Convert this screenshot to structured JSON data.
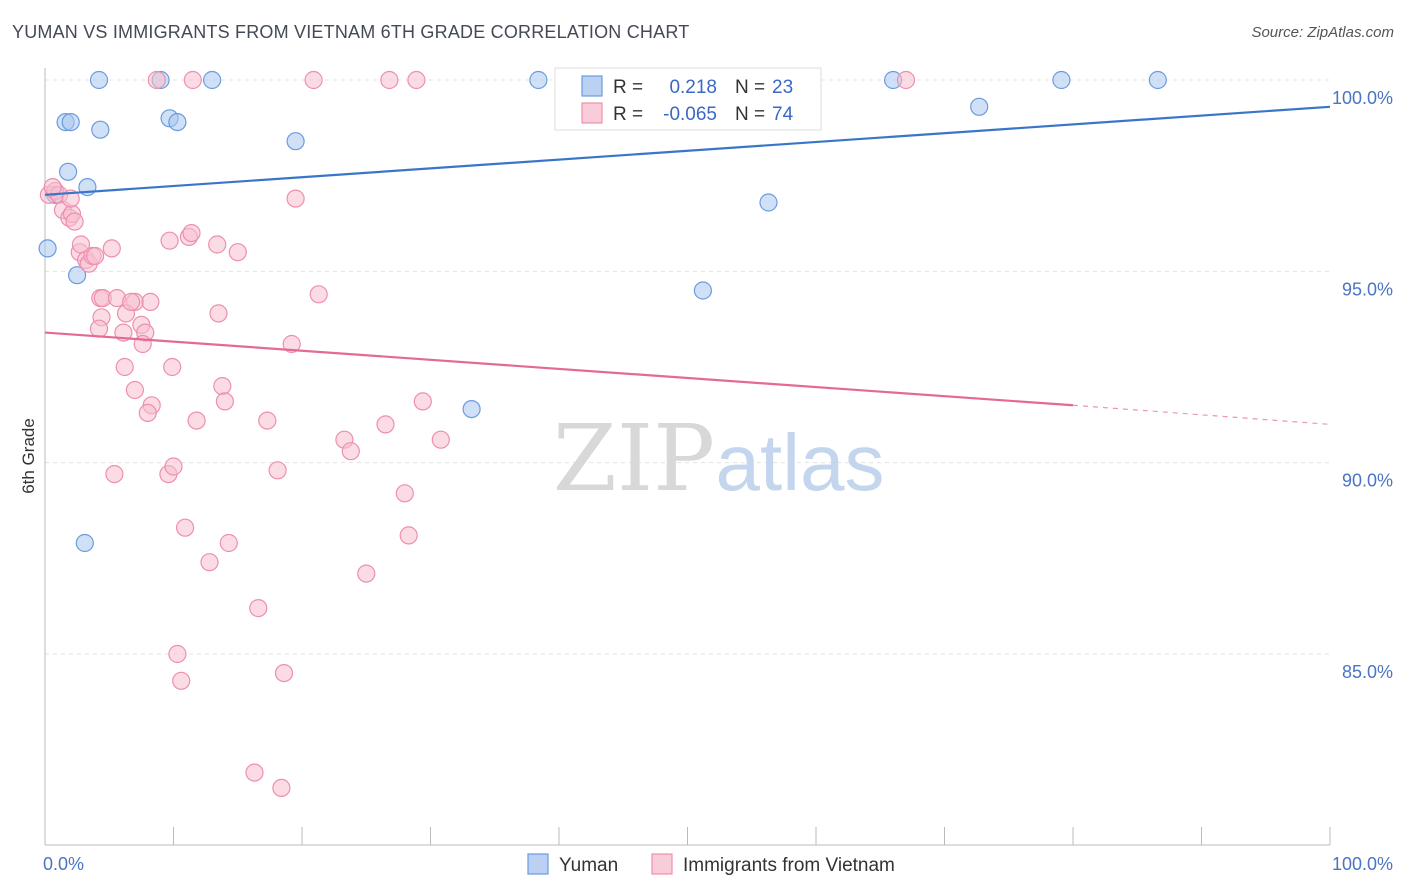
{
  "header": {
    "title": "YUMAN VS IMMIGRANTS FROM VIETNAM 6TH GRADE CORRELATION CHART",
    "source": "Source: ZipAtlas.com"
  },
  "watermark": {
    "zip": "ZIP",
    "atlas": "atlas"
  },
  "chart_data": {
    "type": "scatter",
    "title": "YUMAN VS IMMIGRANTS FROM VIETNAM 6TH GRADE CORRELATION CHART",
    "xlabel": "",
    "ylabel": "6th Grade",
    "xlim": [
      0,
      100
    ],
    "ylim": [
      80.5,
      100.8
    ],
    "x_tick_labels": [
      "0.0%",
      "100.0%"
    ],
    "y_ticks": [
      85,
      90,
      95,
      100
    ],
    "y_tick_labels": [
      "85.0%",
      "90.0%",
      "95.0%",
      "100.0%"
    ],
    "grid": "horizontal-dashed",
    "legend_position": "top-center",
    "series": [
      {
        "name": "Yuman",
        "color": "#a9c6f0",
        "edge": "#6b9be0",
        "line_color": "#3a76c8",
        "r_label": "R =",
        "r_value": "0.218",
        "n_label": "N =",
        "n_value": "23",
        "trend": {
          "x0": 0,
          "y0": 97.0,
          "x1": 100,
          "y1": 99.3
        },
        "points": [
          [
            0.2,
            95.6
          ],
          [
            1.6,
            98.9
          ],
          [
            2.0,
            98.9
          ],
          [
            1.8,
            97.6
          ],
          [
            3.3,
            97.2
          ],
          [
            2.5,
            94.9
          ],
          [
            4.3,
            98.7
          ],
          [
            4.2,
            100.0
          ],
          [
            9.0,
            100.0
          ],
          [
            9.7,
            99.0
          ],
          [
            10.3,
            98.9
          ],
          [
            13.0,
            100.0
          ],
          [
            19.5,
            98.4
          ],
          [
            3.1,
            87.9
          ],
          [
            33.2,
            91.4
          ],
          [
            38.4,
            100.0
          ],
          [
            51.2,
            94.5
          ],
          [
            56.3,
            96.8
          ],
          [
            66.0,
            100.0
          ],
          [
            72.7,
            99.3
          ],
          [
            79.1,
            100.0
          ],
          [
            86.6,
            100.0
          ],
          [
            0.8,
            97.0
          ]
        ]
      },
      {
        "name": "Immigrants from Vietnam",
        "color": "#f7bfd0",
        "edge": "#ee8fae",
        "line_color": "#e26a94",
        "r_label": "R =",
        "r_value": "-0.065",
        "n_label": "N =",
        "n_value": "74",
        "trend": {
          "x0": 0,
          "y0": 93.4,
          "x1": 80,
          "y1": 91.5
        },
        "trend_dashed": {
          "x0": 80,
          "y0": 91.5,
          "x1": 100,
          "y1": 91.0
        },
        "points": [
          [
            0.3,
            97.0
          ],
          [
            0.8,
            97.1
          ],
          [
            1.1,
            97.0
          ],
          [
            1.4,
            96.6
          ],
          [
            1.9,
            96.4
          ],
          [
            2.1,
            96.5
          ],
          [
            2.3,
            96.3
          ],
          [
            2.7,
            95.5
          ],
          [
            2.8,
            95.7
          ],
          [
            3.2,
            95.3
          ],
          [
            3.4,
            95.2
          ],
          [
            3.7,
            95.4
          ],
          [
            3.9,
            95.4
          ],
          [
            5.2,
            95.6
          ],
          [
            4.3,
            94.3
          ],
          [
            4.5,
            94.3
          ],
          [
            5.6,
            94.3
          ],
          [
            7.0,
            94.2
          ],
          [
            8.2,
            94.2
          ],
          [
            4.4,
            93.8
          ],
          [
            4.2,
            93.5
          ],
          [
            6.3,
            93.9
          ],
          [
            7.5,
            93.6
          ],
          [
            6.1,
            93.4
          ],
          [
            7.8,
            93.4
          ],
          [
            7.6,
            93.1
          ],
          [
            9.7,
            95.8
          ],
          [
            11.2,
            95.9
          ],
          [
            11.4,
            96.0
          ],
          [
            13.4,
            95.7
          ],
          [
            15.0,
            95.5
          ],
          [
            13.5,
            93.9
          ],
          [
            19.5,
            96.9
          ],
          [
            19.2,
            93.1
          ],
          [
            21.3,
            94.4
          ],
          [
            6.2,
            92.5
          ],
          [
            7.0,
            91.9
          ],
          [
            8.3,
            91.5
          ],
          [
            8.0,
            91.3
          ],
          [
            9.9,
            92.5
          ],
          [
            13.8,
            92.0
          ],
          [
            14.0,
            91.6
          ],
          [
            11.8,
            91.1
          ],
          [
            17.3,
            91.1
          ],
          [
            23.3,
            90.6
          ],
          [
            23.8,
            90.3
          ],
          [
            26.5,
            91.0
          ],
          [
            29.4,
            91.6
          ],
          [
            30.8,
            90.6
          ],
          [
            5.4,
            89.7
          ],
          [
            9.6,
            89.7
          ],
          [
            10.0,
            89.9
          ],
          [
            18.1,
            89.8
          ],
          [
            28.0,
            89.2
          ],
          [
            10.9,
            88.3
          ],
          [
            14.3,
            87.9
          ],
          [
            28.3,
            88.1
          ],
          [
            12.8,
            87.4
          ],
          [
            25.0,
            87.1
          ],
          [
            16.6,
            86.2
          ],
          [
            10.3,
            85.0
          ],
          [
            10.6,
            84.3
          ],
          [
            18.6,
            84.5
          ],
          [
            16.3,
            81.9
          ],
          [
            18.4,
            81.5
          ],
          [
            8.7,
            100.0
          ],
          [
            11.5,
            100.0
          ],
          [
            20.9,
            100.0
          ],
          [
            26.8,
            100.0
          ],
          [
            28.9,
            100.0
          ],
          [
            67.0,
            100.0
          ],
          [
            0.6,
            97.2
          ],
          [
            2.0,
            96.9
          ],
          [
            6.7,
            94.2
          ]
        ]
      }
    ]
  }
}
